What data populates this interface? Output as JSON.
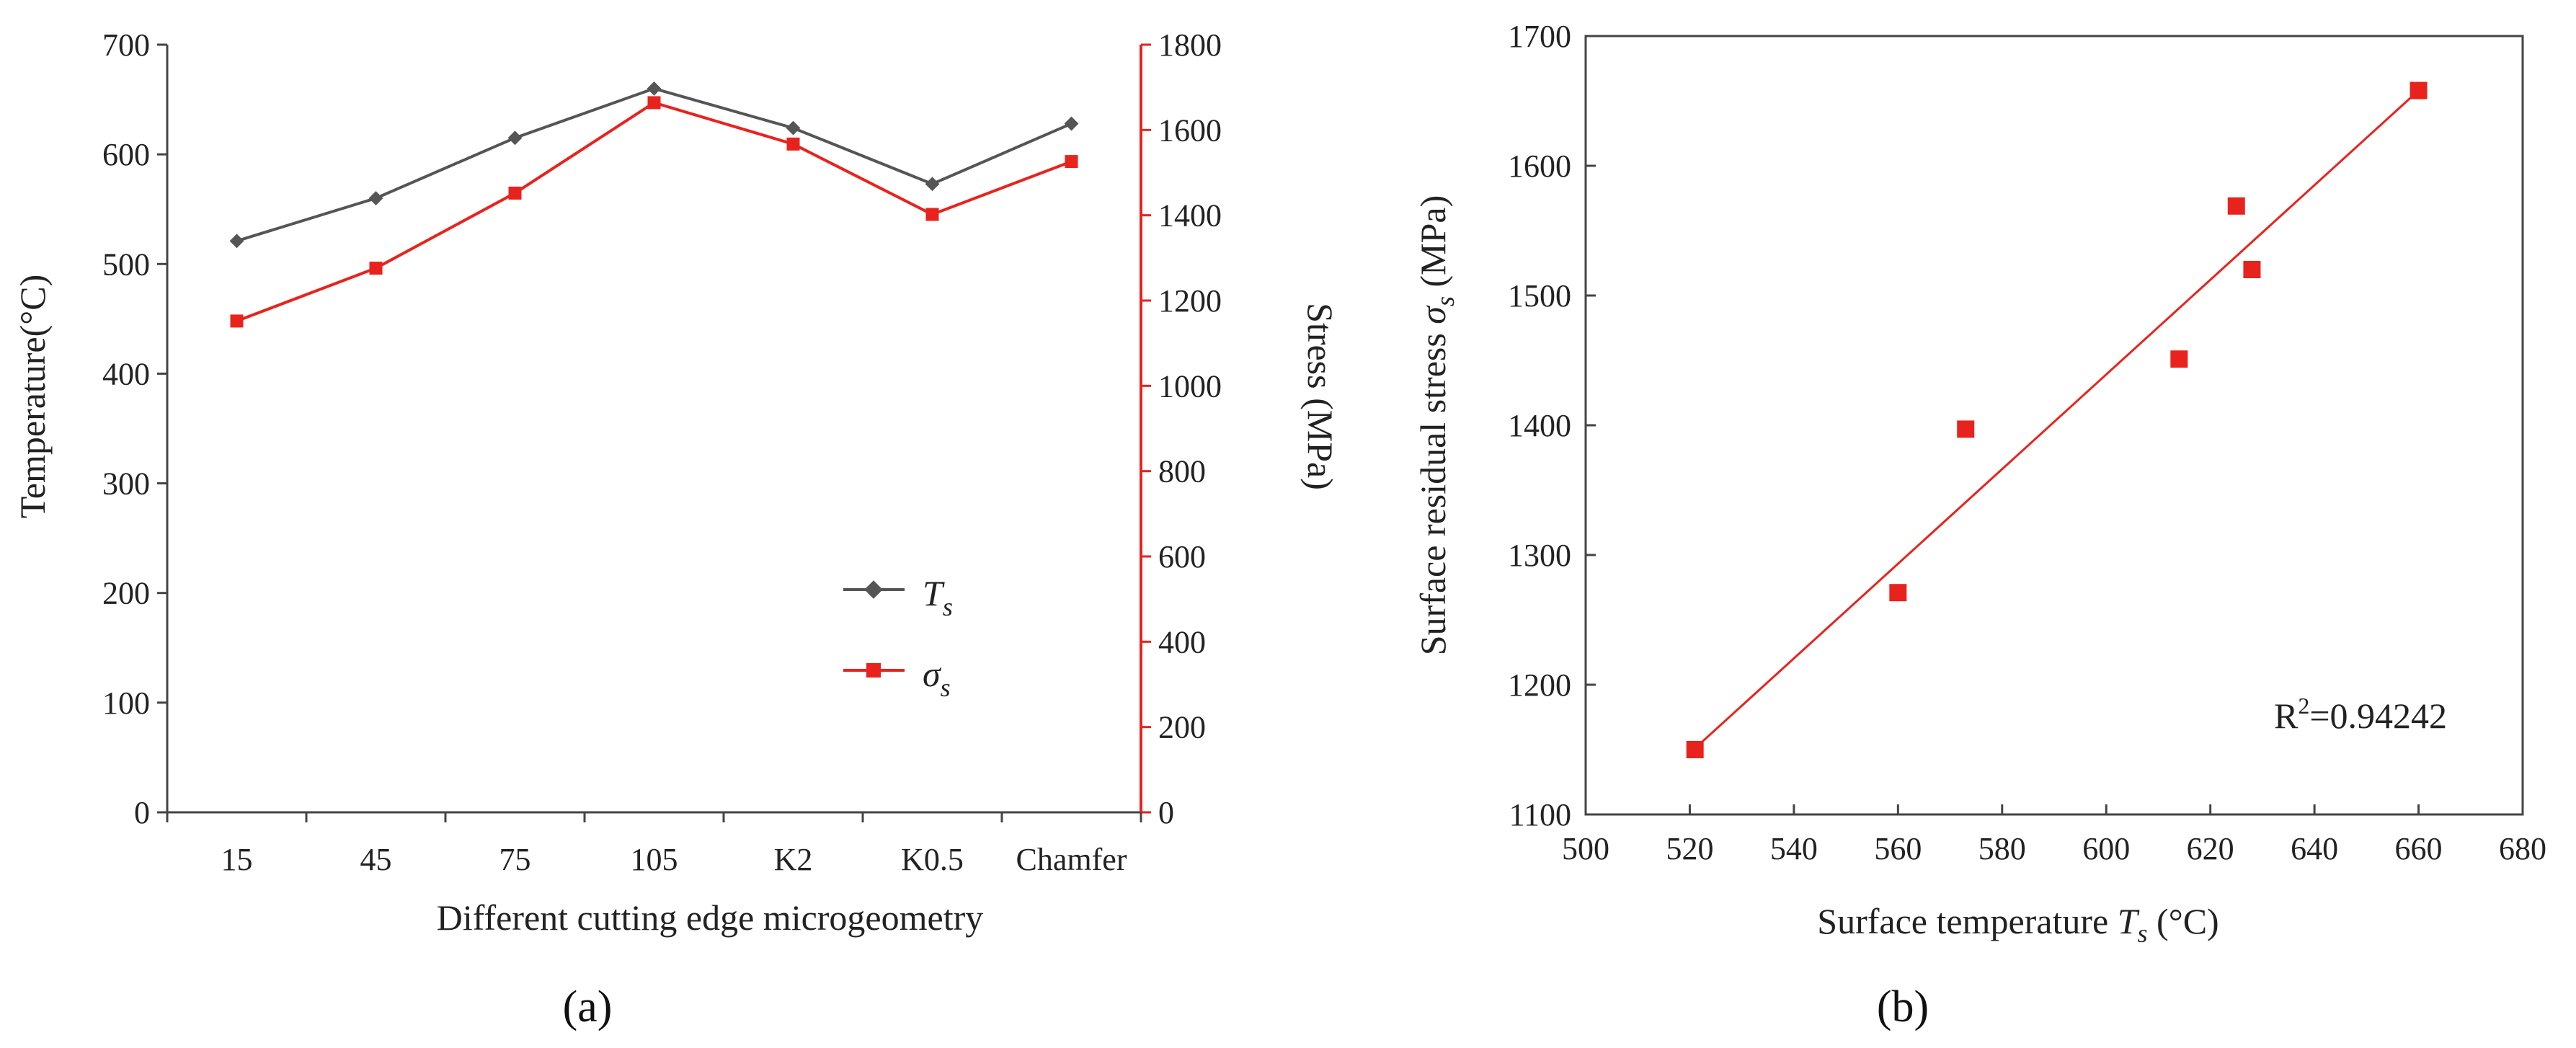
{
  "chart_data": [
    {
      "type": "line",
      "panel_label": "(a)",
      "categories": [
        "15",
        "45",
        "75",
        "105",
        "K2",
        "K0.5",
        "Chamfer"
      ],
      "xlabel": "Different cutting edge microgeometry",
      "ylabel_left": "Temperature(°C)",
      "ylabel_right": "Stress (MPa)",
      "ylim_left": [
        0,
        700
      ],
      "yticks_left": [
        "0",
        "100",
        "200",
        "300",
        "400",
        "500",
        "600",
        "700"
      ],
      "ylim_right": [
        0,
        1800
      ],
      "yticks_right": [
        "0",
        "200",
        "400",
        "600",
        "800",
        "1000",
        "1200",
        "1400",
        "1600",
        "1800"
      ],
      "series": [
        {
          "name": "T",
          "name_sub": "s",
          "axis": "left",
          "color": "#555555",
          "marker": "diamond",
          "values": [
            521,
            560,
            615,
            660,
            624,
            573,
            628
          ]
        },
        {
          "name": "σ",
          "name_sub": "s",
          "axis": "right",
          "color": "#e8231d",
          "marker": "square",
          "values": [
            1152,
            1276,
            1452,
            1664,
            1567,
            1402,
            1526
          ]
        }
      ],
      "legend_position": "lower-right"
    },
    {
      "type": "scatter",
      "panel_label": "(b)",
      "xlabel_main": "Surface temperature ",
      "xlabel_var": "T",
      "xlabel_sub": "s",
      "xlabel_unit": " (°C)",
      "ylabel_main": "Surface residual stress ",
      "ylabel_var": "σ",
      "ylabel_sub": "s",
      "ylabel_unit": " (MPa)",
      "xlim": [
        500,
        680
      ],
      "xticks": [
        "500",
        "520",
        "540",
        "560",
        "580",
        "600",
        "620",
        "640",
        "660",
        "680"
      ],
      "ylim": [
        1100,
        1700
      ],
      "yticks": [
        "1100",
        "1200",
        "1300",
        "1400",
        "1500",
        "1600",
        "1700"
      ],
      "points": [
        {
          "x": 521,
          "y": 1150
        },
        {
          "x": 560,
          "y": 1271
        },
        {
          "x": 573,
          "y": 1397
        },
        {
          "x": 614,
          "y": 1451
        },
        {
          "x": 625,
          "y": 1569
        },
        {
          "x": 628,
          "y": 1520
        },
        {
          "x": 660,
          "y": 1658
        }
      ],
      "fit_line": {
        "x": [
          521,
          660
        ],
        "y": [
          1151,
          1658
        ]
      },
      "color": "#e8231d",
      "annotation_main": "R",
      "annotation_sup": "2",
      "annotation_rest": "=0.94242"
    }
  ]
}
